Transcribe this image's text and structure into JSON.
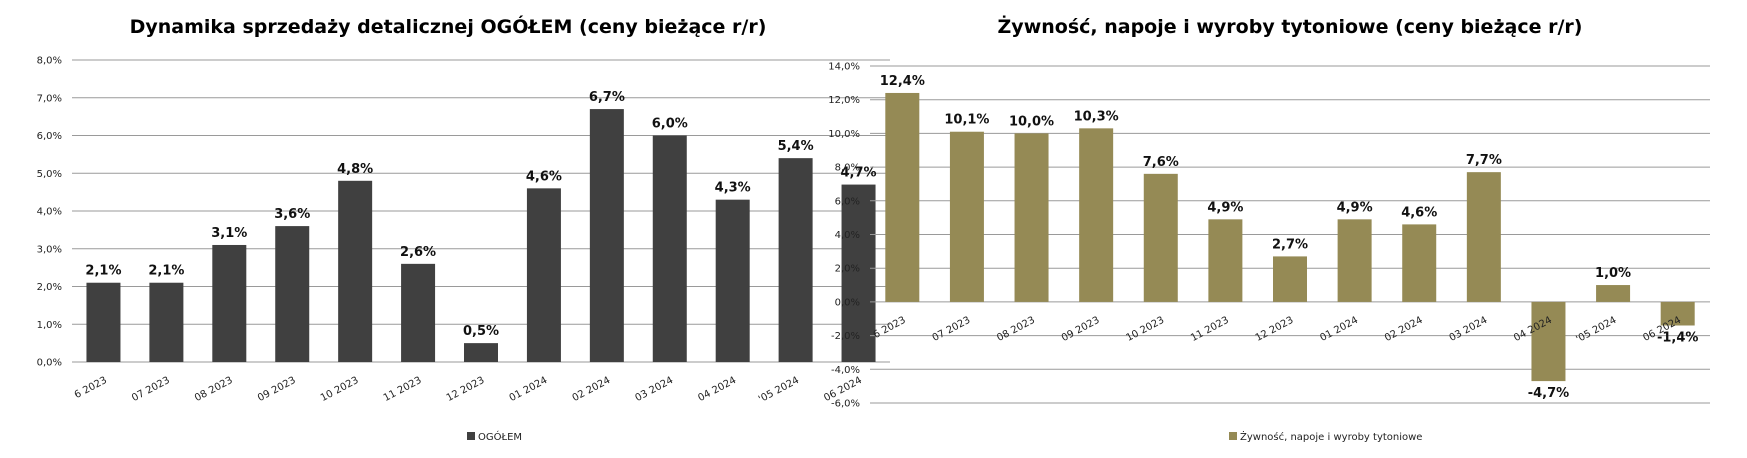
{
  "chart_data": [
    {
      "type": "bar",
      "title": "Dynamika sprzedaży detalicznej OGÓŁEM (ceny bieżące r/r)",
      "categories": [
        "6 2023",
        "07 2023",
        "08 2023",
        "09 2023",
        "10 2023",
        "11 2023",
        "12 2023",
        "01 2024",
        "02 2024",
        "03 2024",
        "04 2024",
        "'05 2024",
        "06 2024"
      ],
      "series": [
        {
          "name": "OGÓŁEM",
          "values": [
            2.1,
            2.1,
            3.1,
            3.6,
            4.8,
            2.6,
            0.5,
            4.6,
            6.7,
            6.0,
            4.3,
            5.4,
            4.7
          ],
          "color": "#404040"
        }
      ],
      "data_labels": [
        "2,1%",
        "2,1%",
        "3,1%",
        "3,6%",
        "4,8%",
        "2,6%",
        "0,5%",
        "4,6%",
        "6,7%",
        "6,0%",
        "4,3%",
        "5,4%",
        "4,7%"
      ],
      "y_ticks": [
        "0,0%",
        "1,0%",
        "2,0%",
        "3,0%",
        "4,0%",
        "5,0%",
        "6,0%",
        "7,0%",
        "8,0%"
      ],
      "ylim": [
        0,
        8
      ],
      "grid": true,
      "legend_position": "bottom"
    },
    {
      "type": "bar",
      "title": "Żywność, napoje i wyroby tytoniowe (ceny bieżące r/r)",
      "categories": [
        "6 2023",
        "07 2023",
        "08 2023",
        "09 2023",
        "10 2023",
        "11 2023",
        "12 2023",
        "01 2024",
        "02 2024",
        "03 2024",
        "04 2024",
        "'05 2024",
        "06 2024"
      ],
      "series": [
        {
          "name": "Żywność, napoje i wyroby tytoniowe",
          "values": [
            12.4,
            10.1,
            10.0,
            10.3,
            7.6,
            4.9,
            2.7,
            4.9,
            4.6,
            7.7,
            -4.7,
            1.0,
            -1.4
          ],
          "color": "#958a55"
        }
      ],
      "data_labels": [
        "12,4%",
        "10,1%",
        "10,0%",
        "10,3%",
        "7,6%",
        "4,9%",
        "2,7%",
        "4,9%",
        "4,6%",
        "7,7%",
        "-4,7%",
        "1,0%",
        "-1,4%"
      ],
      "y_ticks": [
        "-6,0%",
        "-4,0%",
        "-2,0%",
        "0,0%",
        "2,0%",
        "4,0%",
        "6,0%",
        "8,0%",
        "10,0%",
        "12,0%",
        "14,0%"
      ],
      "ylim": [
        -6,
        14
      ],
      "grid": true,
      "legend_position": "bottom"
    }
  ]
}
